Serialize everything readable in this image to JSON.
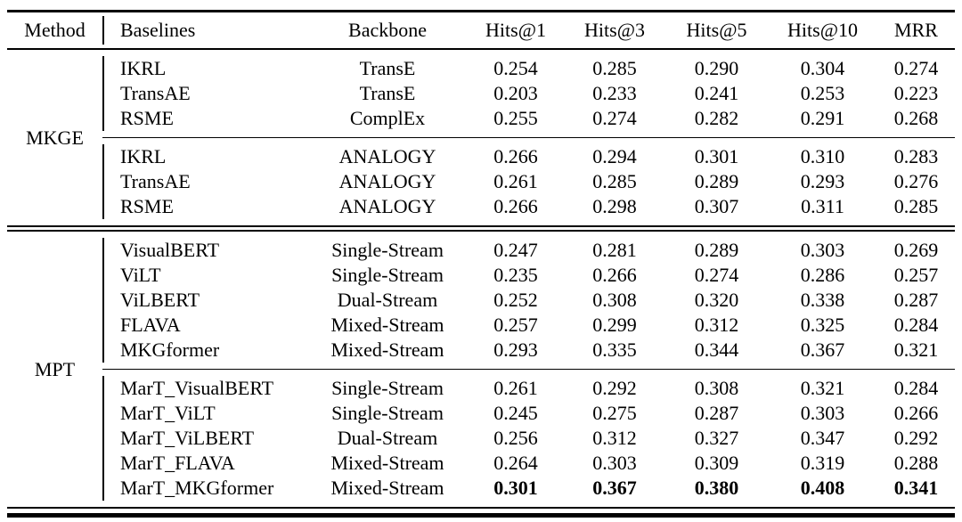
{
  "table": {
    "columns": [
      "Method",
      "Baselines",
      "Backbone",
      "Hits@1",
      "Hits@3",
      "Hits@5",
      "Hits@10",
      "MRR"
    ],
    "sections": [
      {
        "method": "MKGE",
        "groups": [
          {
            "rows": [
              {
                "baseline": "IKRL",
                "backbone": "TransE",
                "values": [
                  "0.254",
                  "0.285",
                  "0.290",
                  "0.304",
                  "0.274"
                ]
              },
              {
                "baseline": "TransAE",
                "backbone": "TransE",
                "values": [
                  "0.203",
                  "0.233",
                  "0.241",
                  "0.253",
                  "0.223"
                ]
              },
              {
                "baseline": "RSME",
                "backbone": "ComplEx",
                "values": [
                  "0.255",
                  "0.274",
                  "0.282",
                  "0.291",
                  "0.268"
                ]
              }
            ]
          },
          {
            "rows": [
              {
                "baseline": "IKRL",
                "backbone": "ANALOGY",
                "values": [
                  "0.266",
                  "0.294",
                  "0.301",
                  "0.310",
                  "0.283"
                ]
              },
              {
                "baseline": "TransAE",
                "backbone": "ANALOGY",
                "values": [
                  "0.261",
                  "0.285",
                  "0.289",
                  "0.293",
                  "0.276"
                ]
              },
              {
                "baseline": "RSME",
                "backbone": "ANALOGY",
                "values": [
                  "0.266",
                  "0.298",
                  "0.307",
                  "0.311",
                  "0.285"
                ]
              }
            ]
          }
        ]
      },
      {
        "method": "MPT",
        "groups": [
          {
            "rows": [
              {
                "baseline": "VisualBERT",
                "backbone": "Single-Stream",
                "values": [
                  "0.247",
                  "0.281",
                  "0.289",
                  "0.303",
                  "0.269"
                ]
              },
              {
                "baseline": "ViLT",
                "backbone": "Single-Stream",
                "values": [
                  "0.235",
                  "0.266",
                  "0.274",
                  "0.286",
                  "0.257"
                ]
              },
              {
                "baseline": "ViLBERT",
                "backbone": "Dual-Stream",
                "values": [
                  "0.252",
                  "0.308",
                  "0.320",
                  "0.338",
                  "0.287"
                ]
              },
              {
                "baseline": "FLAVA",
                "backbone": "Mixed-Stream",
                "values": [
                  "0.257",
                  "0.299",
                  "0.312",
                  "0.325",
                  "0.284"
                ]
              },
              {
                "baseline": "MKGformer",
                "backbone": "Mixed-Stream",
                "values": [
                  "0.293",
                  "0.335",
                  "0.344",
                  "0.367",
                  "0.321"
                ]
              }
            ]
          },
          {
            "rows": [
              {
                "baseline": "MarT_VisualBERT",
                "backbone": "Single-Stream",
                "values": [
                  "0.261",
                  "0.292",
                  "0.308",
                  "0.321",
                  "0.284"
                ]
              },
              {
                "baseline": "MarT_ViLT",
                "backbone": "Single-Stream",
                "values": [
                  "0.245",
                  "0.275",
                  "0.287",
                  "0.303",
                  "0.266"
                ]
              },
              {
                "baseline": "MarT_ViLBERT",
                "backbone": "Dual-Stream",
                "values": [
                  "0.256",
                  "0.312",
                  "0.327",
                  "0.347",
                  "0.292"
                ]
              },
              {
                "baseline": "MarT_FLAVA",
                "backbone": "Mixed-Stream",
                "values": [
                  "0.264",
                  "0.303",
                  "0.309",
                  "0.319",
                  "0.288"
                ]
              },
              {
                "baseline": "MarT_MKGformer",
                "backbone": "Mixed-Stream",
                "values": [
                  "0.301",
                  "0.367",
                  "0.380",
                  "0.408",
                  "0.341"
                ],
                "bold_values": true
              }
            ]
          }
        ]
      }
    ],
    "colors": {
      "text": "#000000",
      "rules": "#000000",
      "background": "#ffffff"
    }
  }
}
